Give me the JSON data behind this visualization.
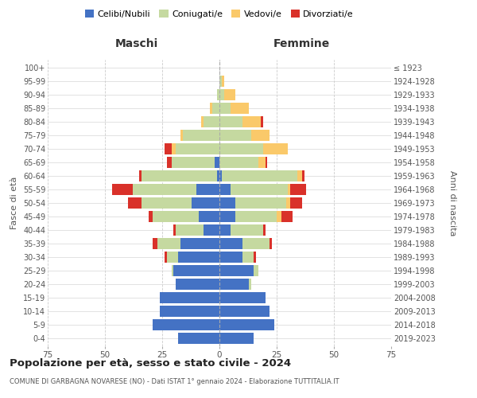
{
  "age_groups": [
    "0-4",
    "5-9",
    "10-14",
    "15-19",
    "20-24",
    "25-29",
    "30-34",
    "35-39",
    "40-44",
    "45-49",
    "50-54",
    "55-59",
    "60-64",
    "65-69",
    "70-74",
    "75-79",
    "80-84",
    "85-89",
    "90-94",
    "95-99",
    "100+"
  ],
  "birth_years": [
    "2019-2023",
    "2014-2018",
    "2009-2013",
    "2004-2008",
    "1999-2003",
    "1994-1998",
    "1989-1993",
    "1984-1988",
    "1979-1983",
    "1974-1978",
    "1969-1973",
    "1964-1968",
    "1959-1963",
    "1954-1958",
    "1949-1953",
    "1944-1948",
    "1939-1943",
    "1934-1938",
    "1929-1933",
    "1924-1928",
    "≤ 1923"
  ],
  "male": {
    "celibi": [
      18,
      29,
      26,
      26,
      19,
      20,
      18,
      17,
      7,
      9,
      12,
      10,
      1,
      2,
      0,
      0,
      0,
      0,
      0,
      0,
      0
    ],
    "coniugati": [
      0,
      0,
      0,
      0,
      0,
      1,
      5,
      10,
      12,
      20,
      22,
      28,
      33,
      19,
      19,
      16,
      7,
      3,
      1,
      0,
      0
    ],
    "vedovi": [
      0,
      0,
      0,
      0,
      0,
      0,
      0,
      0,
      0,
      0,
      0,
      0,
      0,
      0,
      2,
      1,
      1,
      1,
      0,
      0,
      0
    ],
    "divorziati": [
      0,
      0,
      0,
      0,
      0,
      0,
      1,
      2,
      1,
      2,
      6,
      9,
      1,
      2,
      3,
      0,
      0,
      0,
      0,
      0,
      0
    ]
  },
  "female": {
    "nubili": [
      15,
      24,
      22,
      20,
      13,
      15,
      10,
      10,
      5,
      7,
      7,
      5,
      1,
      0,
      0,
      0,
      0,
      0,
      0,
      0,
      0
    ],
    "coniugate": [
      0,
      0,
      0,
      0,
      1,
      2,
      5,
      12,
      14,
      18,
      22,
      25,
      33,
      17,
      19,
      14,
      10,
      5,
      2,
      1,
      0
    ],
    "vedove": [
      0,
      0,
      0,
      0,
      0,
      0,
      0,
      0,
      0,
      2,
      2,
      1,
      2,
      3,
      11,
      8,
      8,
      8,
      5,
      1,
      0
    ],
    "divorziate": [
      0,
      0,
      0,
      0,
      0,
      0,
      1,
      1,
      1,
      5,
      5,
      7,
      1,
      1,
      0,
      0,
      1,
      0,
      0,
      0,
      0
    ]
  },
  "colors": {
    "celibi": "#4472c4",
    "coniugati": "#c5d9a0",
    "vedovi": "#fac96a",
    "divorziati": "#d9312a"
  },
  "title": "Popolazione per età, sesso e stato civile - 2024",
  "subtitle": "COMUNE DI GARBAGNA NOVARESE (NO) - Dati ISTAT 1° gennaio 2024 - Elaborazione TUTTITALIA.IT",
  "xlabel_left": "Maschi",
  "xlabel_right": "Femmine",
  "ylabel_left": "Fasce di età",
  "ylabel_right": "Anni di nascita",
  "xlim": 75,
  "background_color": "#ffffff",
  "grid_color": "#cccccc",
  "legend_labels": [
    "Celibi/Nubili",
    "Coniugati/e",
    "Vedovi/e",
    "Divorziati/e"
  ]
}
